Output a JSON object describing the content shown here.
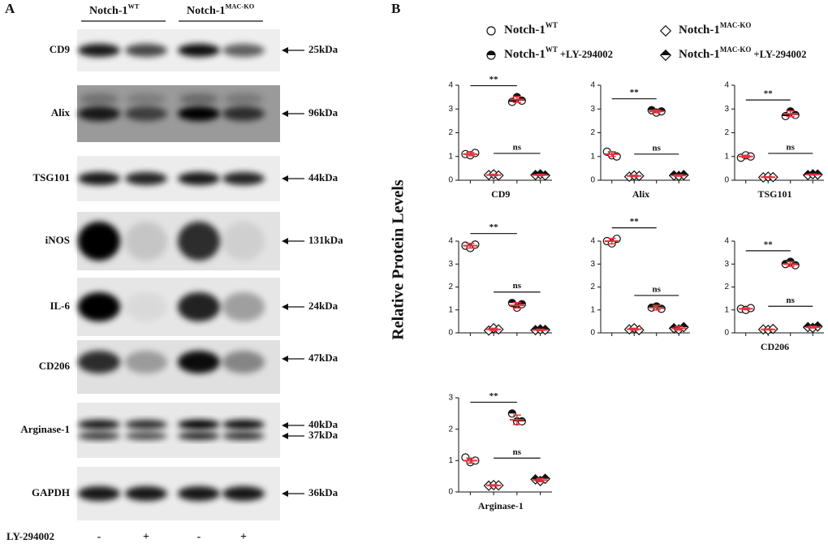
{
  "panel_a": {
    "label": "A",
    "groups": [
      {
        "name": "Notch-1",
        "sup": "WT"
      },
      {
        "name": "Notch-1",
        "sup": "MAC-KO"
      }
    ],
    "rows": [
      {
        "label": "CD9",
        "sizes": [
          "25kDa"
        ]
      },
      {
        "label": "Alix",
        "sizes": [
          "96kDa"
        ]
      },
      {
        "label": "TSG101",
        "sizes": [
          "44kDa"
        ]
      },
      {
        "label": "iNOS",
        "sizes": [
          "131kDa"
        ]
      },
      {
        "label": "IL-6",
        "sizes": [
          "24kDa"
        ]
      },
      {
        "label": "CD206",
        "sizes": [
          "47kDa"
        ]
      },
      {
        "label": "Arginase-1",
        "sizes": [
          "40kDa",
          "37kDa"
        ]
      },
      {
        "label": "GAPDH",
        "sizes": [
          "36kDa"
        ]
      }
    ],
    "treatment": {
      "label": "LY-294002",
      "signs": [
        "-",
        "+",
        "-",
        "+"
      ]
    }
  },
  "panel_b": {
    "label": "B",
    "ylabel": "Relative Protein Levels",
    "legend": [
      {
        "name": "Notch-1",
        "sup": "WT",
        "marker": "circle",
        "fill": "open"
      },
      {
        "name": "Notch-1",
        "sup": "MAC-KO",
        "marker": "diamond",
        "fill": "open"
      },
      {
        "name": "Notch-1",
        "sup": "WT",
        "suffix": "+LY-294002",
        "marker": "circle",
        "fill": "half"
      },
      {
        "name": "Notch-1",
        "sup": "MAC-KO",
        "suffix": "+LY-294002",
        "marker": "diamond",
        "fill": "half"
      }
    ]
  },
  "chart_data": [
    {
      "type": "dot",
      "xlabel": "CD9",
      "ylim": [
        0,
        4
      ],
      "yticks": [
        0,
        1,
        2,
        3,
        4
      ],
      "annotations": [
        "**",
        "ns"
      ],
      "error_color": "#e8323c",
      "series": [
        {
          "values": [
            1.1,
            1.05,
            1.15
          ],
          "mean": 1.1,
          "error": 0.07
        },
        {
          "values": [
            0.22,
            0.25,
            0.2
          ],
          "mean": 0.22,
          "error": 0.03
        },
        {
          "values": [
            3.3,
            3.5,
            3.35
          ],
          "mean": 3.4,
          "error": 0.12
        },
        {
          "values": [
            0.22,
            0.25,
            0.2
          ],
          "mean": 0.22,
          "error": 0.03
        }
      ]
    },
    {
      "type": "dot",
      "xlabel": "Alix",
      "ylim": [
        0,
        4
      ],
      "yticks": [
        0,
        1,
        2,
        3,
        4
      ],
      "annotations": [
        "**",
        "ns"
      ],
      "error_color": "#e8323c",
      "series": [
        {
          "values": [
            1.2,
            1.05,
            1.0
          ],
          "mean": 1.1,
          "error": 0.1
        },
        {
          "values": [
            0.15,
            0.2,
            0.18
          ],
          "mean": 0.18,
          "error": 0.03
        },
        {
          "values": [
            2.95,
            2.85,
            2.9
          ],
          "mean": 2.9,
          "error": 0.06
        },
        {
          "values": [
            0.2,
            0.18,
            0.22
          ],
          "mean": 0.2,
          "error": 0.03
        }
      ]
    },
    {
      "type": "dot",
      "xlabel": "TSG101",
      "ylim": [
        0,
        4
      ],
      "yticks": [
        0,
        1,
        2,
        3,
        4
      ],
      "annotations": [
        "**",
        "ns"
      ],
      "error_color": "#e8323c",
      "series": [
        {
          "values": [
            0.95,
            1.05,
            1.0
          ],
          "mean": 1.0,
          "error": 0.05
        },
        {
          "values": [
            0.12,
            0.15,
            0.13
          ],
          "mean": 0.13,
          "error": 0.02
        },
        {
          "values": [
            2.7,
            2.9,
            2.75
          ],
          "mean": 2.8,
          "error": 0.12
        },
        {
          "values": [
            0.22,
            0.25,
            0.24
          ],
          "mean": 0.24,
          "error": 0.02
        }
      ]
    },
    {
      "type": "dot",
      "ylim": [
        0,
        4
      ],
      "yticks": [
        0,
        1,
        2,
        3,
        4
      ],
      "annotations": [
        "**",
        "ns"
      ],
      "error_color": "#e8323c",
      "series": [
        {
          "values": [
            3.8,
            3.7,
            3.85
          ],
          "mean": 3.8,
          "error": 0.1
        },
        {
          "values": [
            0.1,
            0.2,
            0.15
          ],
          "mean": 0.15,
          "error": 0.05
        },
        {
          "values": [
            1.3,
            1.1,
            1.25
          ],
          "mean": 1.2,
          "error": 0.12
        },
        {
          "values": [
            0.12,
            0.15,
            0.13
          ],
          "mean": 0.13,
          "error": 0.03
        }
      ]
    },
    {
      "type": "dot",
      "ylim": [
        0,
        4
      ],
      "yticks": [
        0,
        1,
        2,
        3,
        4
      ],
      "annotations": [
        "**",
        "ns"
      ],
      "error_color": "#e8323c",
      "series": [
        {
          "values": [
            4.0,
            3.9,
            4.1
          ],
          "mean": 4.0,
          "error": 0.12
        },
        {
          "values": [
            0.15,
            0.2,
            0.12
          ],
          "mean": 0.16,
          "error": 0.04
        },
        {
          "values": [
            1.1,
            1.15,
            1.05
          ],
          "mean": 1.1,
          "error": 0.1
        },
        {
          "values": [
            0.2,
            0.15,
            0.25
          ],
          "mean": 0.2,
          "error": 0.08
        }
      ]
    },
    {
      "type": "dot",
      "xlabel": "CD206",
      "ylim": [
        0,
        4
      ],
      "yticks": [
        0,
        1,
        2,
        3,
        4
      ],
      "annotations": [
        "**",
        "ns"
      ],
      "error_color": "#e8323c",
      "series": [
        {
          "values": [
            1.05,
            1.0,
            1.08
          ],
          "mean": 1.05,
          "error": 0.04
        },
        {
          "values": [
            0.15,
            0.13,
            0.17
          ],
          "mean": 0.15,
          "error": 0.02
        },
        {
          "values": [
            3.0,
            3.1,
            2.95
          ],
          "mean": 3.0,
          "error": 0.1
        },
        {
          "values": [
            0.25,
            0.22,
            0.28
          ],
          "mean": 0.25,
          "error": 0.04
        }
      ]
    },
    {
      "type": "dot",
      "xlabel": "Arginase-1",
      "ylim": [
        0,
        3
      ],
      "yticks": [
        0,
        1,
        2,
        3
      ],
      "annotations": [
        "**",
        "ns"
      ],
      "error_color": "#e8323c",
      "series": [
        {
          "values": [
            1.1,
            0.95,
            1.0
          ],
          "mean": 1.0,
          "error": 0.08
        },
        {
          "values": [
            0.2,
            0.22,
            0.21
          ],
          "mean": 0.21,
          "error": 0.02
        },
        {
          "values": [
            2.5,
            2.25,
            2.25
          ],
          "mean": 2.3,
          "error": 0.15
        },
        {
          "values": [
            0.4,
            0.35,
            0.42
          ],
          "mean": 0.38,
          "error": 0.05
        }
      ]
    }
  ]
}
